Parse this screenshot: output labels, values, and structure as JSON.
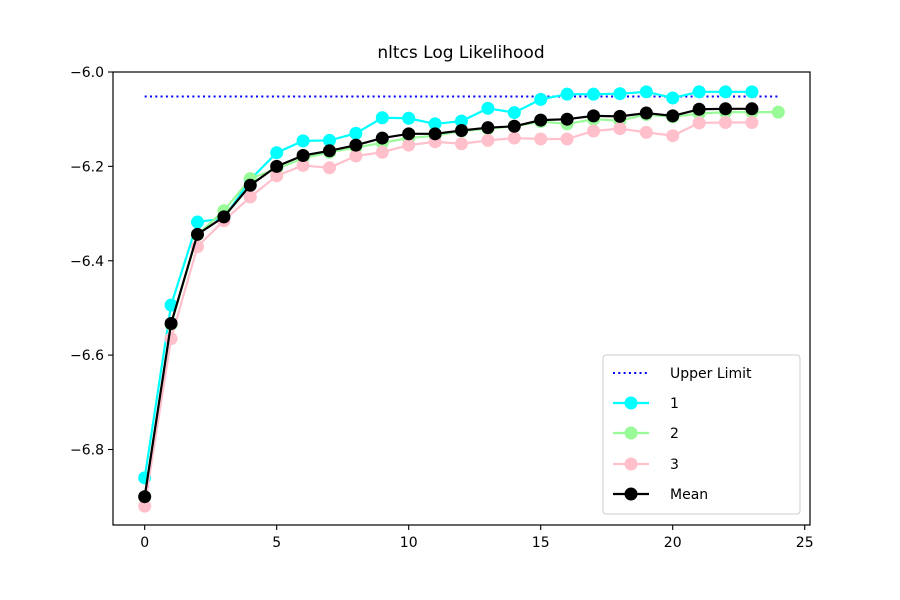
{
  "chart_data": {
    "type": "line",
    "title": "nltcs Log Likelihood",
    "xlabel": "",
    "ylabel": "",
    "xlim": [
      -1.2,
      25.2
    ],
    "ylim": [
      -6.96,
      -6.0
    ],
    "xticks": [
      0,
      5,
      10,
      15,
      20,
      25
    ],
    "xtick_labels": [
      "0",
      "5",
      "10",
      "15",
      "20",
      "25"
    ],
    "yticks": [
      -6.8,
      -6.6,
      -6.4,
      -6.2,
      -6.0
    ],
    "ytick_labels": [
      "−6.8",
      "−6.6",
      "−6.4",
      "−6.2",
      "−6.0"
    ],
    "grid": false,
    "legend_position": "lower-right",
    "upper_limit": {
      "name": "Upper Limit",
      "color": "#0000ff",
      "style": "dotted",
      "x": [
        0,
        24
      ],
      "y": -6.052
    },
    "series": [
      {
        "name": "1",
        "color": "#00ffff",
        "x": [
          0,
          1,
          2,
          3,
          4,
          5,
          6,
          7,
          8,
          9,
          10,
          11,
          12,
          13,
          14,
          15,
          16,
          17,
          18,
          19,
          20,
          21,
          22,
          23
        ],
        "values": [
          -6.86,
          -6.494,
          -6.318,
          -6.31,
          -6.228,
          -6.171,
          -6.146,
          -6.145,
          -6.13,
          -6.097,
          -6.098,
          -6.11,
          -6.104,
          -6.077,
          -6.086,
          -6.058,
          -6.047,
          -6.047,
          -6.046,
          -6.042,
          -6.055,
          -6.042,
          -6.042,
          -6.042
        ]
      },
      {
        "name": "2",
        "color": "#98fb98",
        "x": [
          0,
          1,
          2,
          3,
          4,
          5,
          6,
          7,
          8,
          9,
          10,
          11,
          12,
          13,
          14,
          15,
          16,
          17,
          18,
          19,
          20,
          21,
          22,
          23,
          24
        ],
        "values": [
          -6.9,
          -6.535,
          -6.345,
          -6.294,
          -6.226,
          -6.205,
          -6.183,
          -6.17,
          -6.16,
          -6.15,
          -6.14,
          -6.135,
          -6.125,
          -6.12,
          -6.115,
          -6.105,
          -6.11,
          -6.1,
          -6.103,
          -6.09,
          -6.095,
          -6.088,
          -6.085,
          -6.085,
          -6.085
        ]
      },
      {
        "name": "3",
        "color": "#ffc0cb",
        "x": [
          0,
          1,
          2,
          3,
          4,
          5,
          6,
          7,
          8,
          9,
          10,
          11,
          12,
          13,
          14,
          15,
          16,
          17,
          18,
          19,
          20,
          21,
          22,
          23
        ],
        "values": [
          -6.92,
          -6.565,
          -6.37,
          -6.315,
          -6.265,
          -6.22,
          -6.198,
          -6.203,
          -6.178,
          -6.17,
          -6.155,
          -6.148,
          -6.152,
          -6.145,
          -6.14,
          -6.142,
          -6.142,
          -6.125,
          -6.12,
          -6.128,
          -6.135,
          -6.108,
          -6.107,
          -6.107
        ]
      },
      {
        "name": "Mean",
        "color": "#000000",
        "x": [
          0,
          1,
          2,
          3,
          4,
          5,
          6,
          7,
          8,
          9,
          10,
          11,
          12,
          13,
          14,
          15,
          16,
          17,
          18,
          19,
          20,
          21,
          22,
          23
        ],
        "values": [
          -6.9,
          -6.533,
          -6.344,
          -6.307,
          -6.24,
          -6.2,
          -6.177,
          -6.167,
          -6.155,
          -6.14,
          -6.131,
          -6.131,
          -6.124,
          -6.118,
          -6.115,
          -6.102,
          -6.1,
          -6.093,
          -6.094,
          -6.087,
          -6.093,
          -6.079,
          -6.078,
          -6.078
        ]
      }
    ]
  }
}
